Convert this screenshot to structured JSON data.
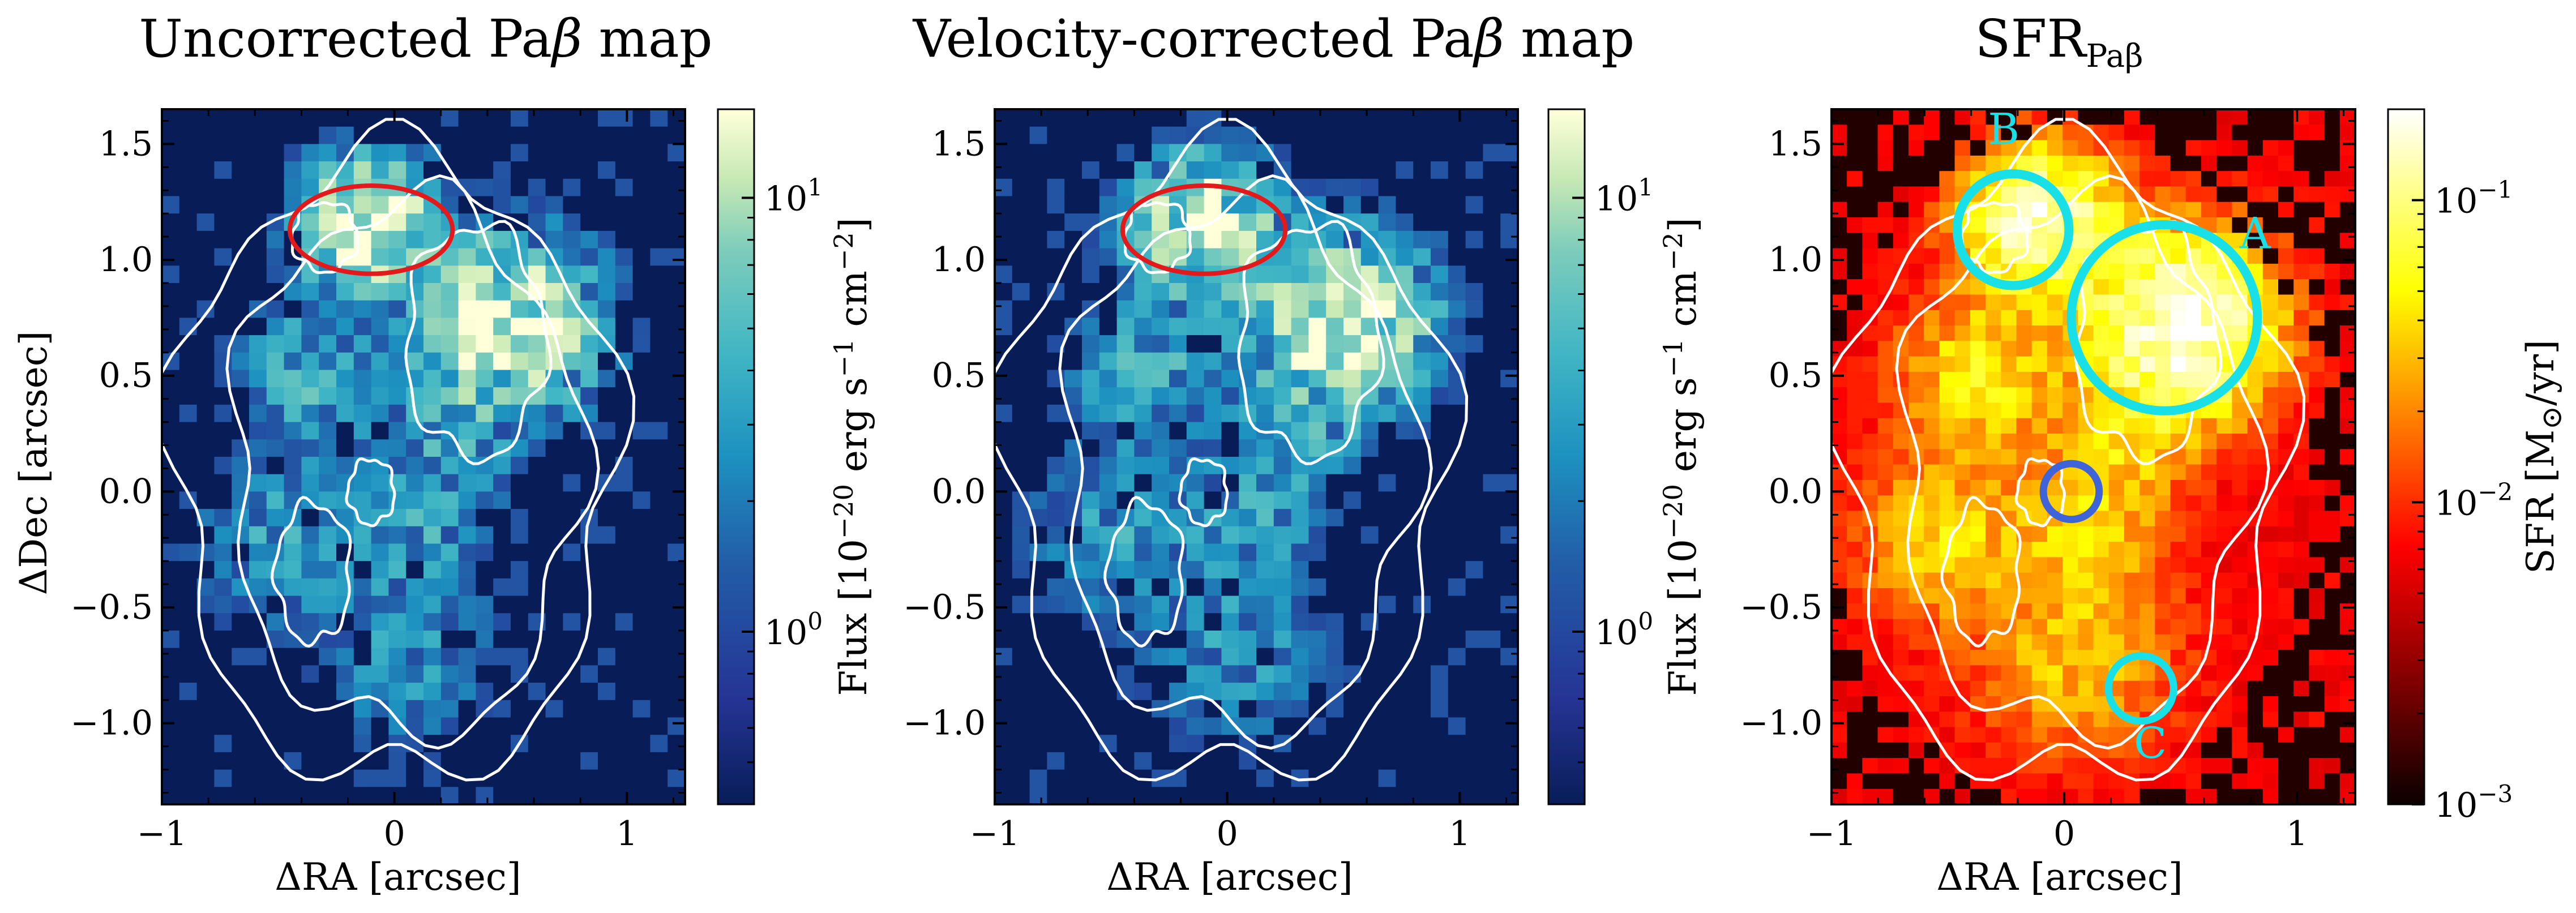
{
  "panels": [
    {
      "id": "uncorrected",
      "title": "Uncorrected Paβ map",
      "title_main": "Uncorrected Pa",
      "title_greek": "β",
      "title_tail": " map",
      "colormap": "YlGnBu_r",
      "colorbar_scale": "log",
      "colorbar_label_pre": "Flux [10",
      "colorbar_label_exp1": "−20",
      "colorbar_label_mid": " erg s",
      "colorbar_label_exp2": "−1",
      "colorbar_label_mid2": " cm",
      "colorbar_label_exp3": "−2",
      "colorbar_label_post": "]",
      "colorbar_ticks": [
        {
          "base": "10",
          "exp": "1",
          "value": 10
        },
        {
          "base": "10",
          "exp": "0",
          "value": 1
        }
      ],
      "colorbar_range": [
        0.4,
        16
      ],
      "region_color": "#e31a1c",
      "has_ylabel": true
    },
    {
      "id": "velocity-corrected",
      "title": "Velocity-corrected Paβ map",
      "title_main": "Velocity-corrected Pa",
      "title_greek": "β",
      "title_tail": " map",
      "colormap": "YlGnBu_r",
      "colorbar_scale": "log",
      "colorbar_label_pre": "Flux [10",
      "colorbar_label_exp1": "−20",
      "colorbar_label_mid": " erg s",
      "colorbar_label_exp2": "−1",
      "colorbar_label_mid2": " cm",
      "colorbar_label_exp3": "−2",
      "colorbar_label_post": "]",
      "colorbar_ticks": [
        {
          "base": "10",
          "exp": "1",
          "value": 10
        },
        {
          "base": "10",
          "exp": "0",
          "value": 1
        }
      ],
      "colorbar_range": [
        0.4,
        16
      ],
      "region_color": "#e31a1c",
      "has_ylabel": false
    },
    {
      "id": "sfr",
      "title": "SFRPaβ",
      "title_main": "SFR",
      "title_sub": "Paβ",
      "colormap": "hot",
      "colorbar_scale": "log",
      "colorbar_label": "SFR [M⊙/yr]",
      "colorbar_label_pre": "SFR [M",
      "colorbar_label_sub": "⊙",
      "colorbar_label_post": "/yr]",
      "colorbar_ticks": [
        {
          "base": "10",
          "exp": "−1",
          "value": 0.1
        },
        {
          "base": "10",
          "exp": "−2",
          "value": 0.01
        },
        {
          "base": "10",
          "exp": "−3",
          "value": 0.001
        }
      ],
      "colorbar_range": [
        0.001,
        0.2
      ],
      "has_ylabel": false
    }
  ],
  "chart_data": {
    "type": "heatmap",
    "panel_count": 3,
    "xlabel": "ΔRA [arcsec]",
    "xlabel_greek": "Δ",
    "xlabel_rest": "RA [arcsec]",
    "ylabel": "ΔDec [arcsec]",
    "ylabel_greek": "Δ",
    "ylabel_rest": "Dec [arcsec]",
    "xlim": [
      -1.0,
      1.25
    ],
    "ylim": [
      -1.35,
      1.65
    ],
    "xticks": [
      {
        "value": -1,
        "label": "−1"
      },
      {
        "value": 0,
        "label": "0"
      },
      {
        "value": 1,
        "label": "1"
      }
    ],
    "yticks": [
      {
        "value": 1.5,
        "label": "1.5"
      },
      {
        "value": 1.0,
        "label": "1.0"
      },
      {
        "value": 0.5,
        "label": "0.5"
      },
      {
        "value": 0.0,
        "label": "0.0"
      },
      {
        "value": -0.5,
        "label": "−0.5"
      },
      {
        "value": -1.0,
        "label": "−1.0"
      }
    ],
    "flux_clumps": [
      {
        "ra": -0.1,
        "dec": 1.15,
        "peak": 14,
        "sigma": 0.18
      },
      {
        "ra": 0.5,
        "dec": 0.72,
        "peak": 16,
        "sigma": 0.22
      },
      {
        "ra": -0.35,
        "dec": 0.5,
        "peak": 4,
        "sigma": 0.2
      },
      {
        "ra": -0.5,
        "dec": -0.2,
        "peak": 3,
        "sigma": 0.22
      },
      {
        "ra": 0.1,
        "dec": -0.15,
        "peak": 3,
        "sigma": 0.18
      },
      {
        "ra": 0.05,
        "dec": -0.7,
        "peak": 2.5,
        "sigma": 0.25
      },
      {
        "ra": 0.25,
        "dec": 0.25,
        "peak": 3,
        "sigma": 0.18
      }
    ],
    "contours": [
      {
        "cx": 0.0,
        "cy": 0.1,
        "rx": 0.95,
        "ry": 1.35
      },
      {
        "cx": 0.05,
        "cy": 0.1,
        "rx": 0.75,
        "ry": 1.15
      },
      {
        "cx": 0.35,
        "cy": 0.65,
        "rx": 0.3,
        "ry": 0.5
      },
      {
        "cx": -0.3,
        "cy": 1.1,
        "rx": 0.14,
        "ry": 0.15
      },
      {
        "cx": -0.1,
        "cy": 0.0,
        "rx": 0.1,
        "ry": 0.14
      },
      {
        "cx": -0.35,
        "cy": -0.35,
        "rx": 0.16,
        "ry": 0.3
      }
    ],
    "flux_region": {
      "ra": -0.1,
      "dec": 1.13,
      "rx": 0.35,
      "ry": 0.19
    },
    "sfr_regions": [
      {
        "label": "A",
        "ra": 0.43,
        "dec": 0.75,
        "r": 0.4,
        "color": "#19e0e6",
        "label_ra": 0.82,
        "label_dec": 1.05
      },
      {
        "label": "B",
        "ra": -0.22,
        "dec": 1.13,
        "r": 0.24,
        "color": "#19e0e6",
        "label_ra": -0.26,
        "label_dec": 1.5
      },
      {
        "label": "C",
        "ra": 0.33,
        "dec": -0.85,
        "r": 0.14,
        "color": "#19e0e6",
        "label_ra": 0.37,
        "label_dec": -1.15
      },
      {
        "label": "",
        "ra": 0.03,
        "dec": 0.0,
        "r": 0.12,
        "color": "#3f63d9"
      }
    ]
  }
}
